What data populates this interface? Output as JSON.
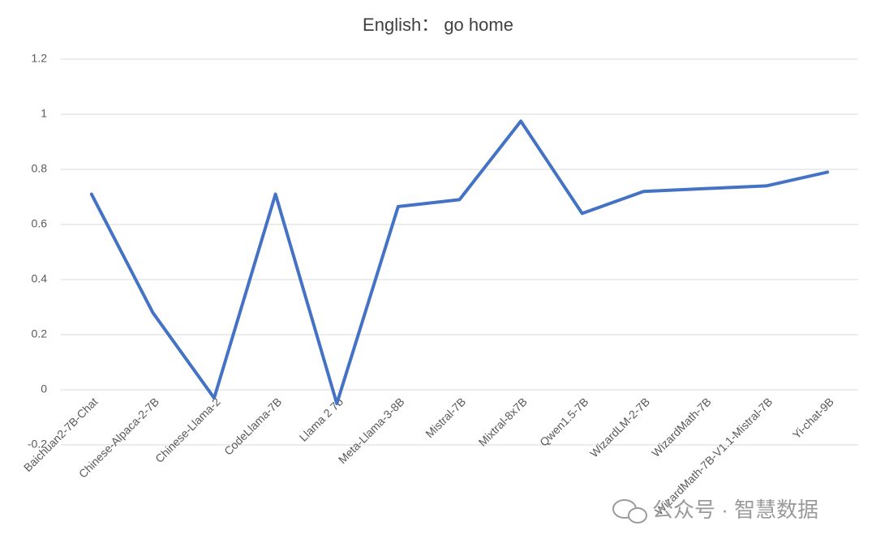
{
  "chart_data": {
    "type": "line",
    "title": "English：  go home",
    "categories": [
      "Baichuan2-7B-Chat",
      "Chinese-Alpaca-2-7B",
      "Chinese-Llama-2",
      "CodeLlama-7B",
      "Llama 2 7b",
      "Meta-Llama-3-8B",
      "Mistral-7B",
      "Mixtral-8x7B",
      "Qwen1.5-7B",
      "WizardLM-2-7B",
      "WizardMath-7B",
      "WizardMath-7B-V1.1-Mistral-7B",
      "Yi-chat-9B"
    ],
    "series": [
      {
        "color": "#4472c4",
        "values": [
          0.71,
          0.28,
          -0.03,
          0.71,
          -0.05,
          0.665,
          0.69,
          0.975,
          0.64,
          0.72,
          0.73,
          0.74,
          0.79
        ]
      }
    ],
    "ylim": [
      -0.2,
      1.2
    ],
    "yticks": [
      -0.2,
      0,
      0.2,
      0.4,
      0.6,
      0.8,
      1,
      1.2
    ],
    "grid": true,
    "watermark": "公众号 · 智慧数据"
  }
}
